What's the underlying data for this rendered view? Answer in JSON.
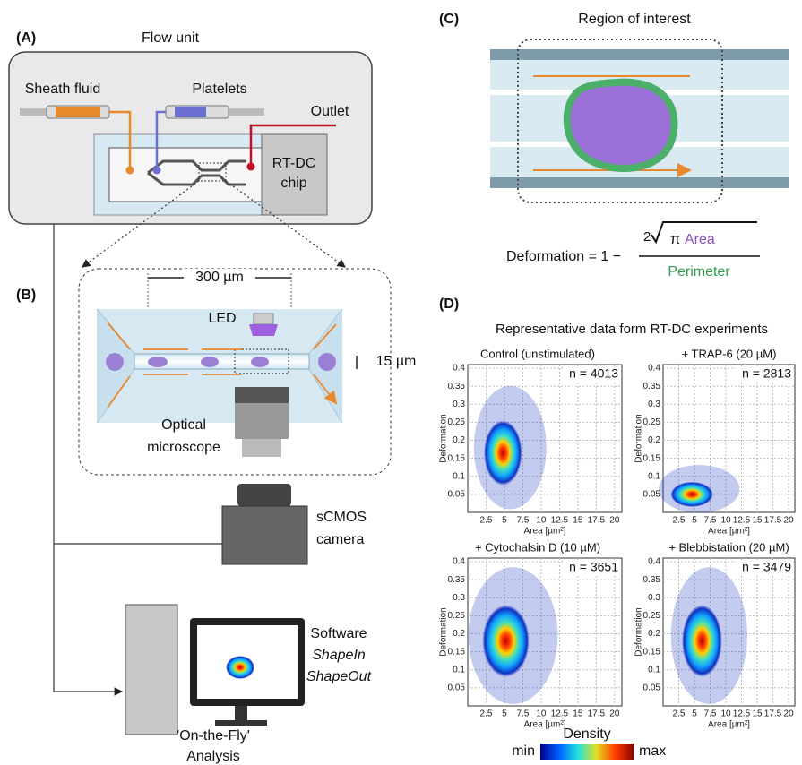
{
  "panel_a": {
    "label": "(A)",
    "title": "Flow unit",
    "sheath": "Sheath fluid",
    "platelets": "Platelets",
    "outlet": "Outlet",
    "chip": [
      "RT-DC",
      "chip"
    ]
  },
  "panel_b": {
    "label": "(B)",
    "width": "300 µm",
    "height": "15 µm",
    "led": "LED",
    "microscope": [
      "Optical",
      "microscope"
    ],
    "camera": [
      "sCMOS",
      "camera"
    ],
    "software": [
      "Software",
      "ShapeIn",
      "ShapeOut"
    ],
    "analysis": [
      "'On-the-Fly'",
      "Analysis"
    ]
  },
  "panel_c": {
    "label": "(C)",
    "title": "Region of interest",
    "lhs": "Deformation = 1 −",
    "coef": "2",
    "pi": "π",
    "area": "Area",
    "den": "Perimeter"
  },
  "panel_d": {
    "label": "(D)",
    "title": "Representative data form RT-DC experiments",
    "y_label": "Deformation",
    "x_label": "Area [µm²]",
    "xlim": [
      0,
      21
    ],
    "ylim": [
      0,
      0.41
    ],
    "xticks": [
      2.5,
      5,
      7.5,
      10,
      12.5,
      15,
      17.5,
      20
    ],
    "yticks": [
      0.05,
      0.1,
      0.15,
      0.2,
      0.25,
      0.3,
      0.35,
      0.4
    ],
    "plots": [
      {
        "title": "Control (unstimulated)",
        "n": "n = 4013"
      },
      {
        "title": "+ TRAP-6 (20 µM)",
        "n": "n = 2813"
      },
      {
        "title": "+ Cytochalsin D (10 µM)",
        "n": "n = 3651"
      },
      {
        "title": "+ Blebbistation (20 µM)",
        "n": "n = 3479"
      }
    ],
    "density": {
      "title": "Density",
      "min": "min",
      "max": "max"
    }
  }
}
